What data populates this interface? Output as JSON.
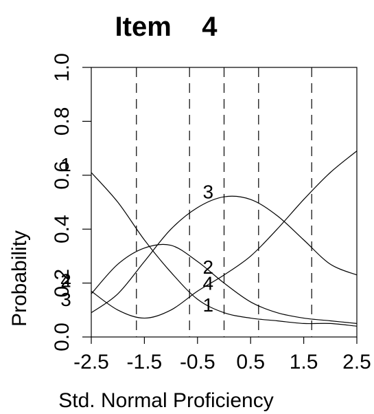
{
  "chart_data": {
    "type": "line",
    "title": "Item    4",
    "xlabel": "Std. Normal Proficiency",
    "ylabel": "Probability",
    "xlim": [
      -2.5,
      2.5
    ],
    "ylim": [
      0.0,
      1.0
    ],
    "x_ticks": [
      -2.5,
      -1.5,
      -0.5,
      0.5,
      1.5,
      2.5
    ],
    "x_tick_labels": [
      "-2.5",
      "-1.5",
      "-0.5",
      "0.5",
      "1.5",
      "2.5"
    ],
    "y_ticks": [
      0.0,
      0.2,
      0.4,
      0.6,
      0.8,
      1.0
    ],
    "y_tick_labels": [
      "0.0",
      "0.2",
      "0.4",
      "0.6",
      "0.8",
      "1.0"
    ],
    "vertical_dashed_lines": [
      -1.65,
      -0.65,
      0.0,
      0.65,
      1.65
    ],
    "grid": false,
    "series": [
      {
        "name": "1",
        "x": [
          -2.5,
          -2.0,
          -1.5,
          -1.0,
          -0.5,
          0.0,
          0.5,
          1.0,
          1.5,
          2.0,
          2.5
        ],
        "values": [
          0.61,
          0.5,
          0.36,
          0.24,
          0.14,
          0.09,
          0.07,
          0.06,
          0.05,
          0.05,
          0.04
        ],
        "label_x": -0.3,
        "label_y": 0.12
      },
      {
        "name": "2",
        "x": [
          -2.5,
          -2.0,
          -1.5,
          -1.0,
          -0.5,
          0.0,
          0.5,
          1.0,
          1.5,
          2.0,
          2.5
        ],
        "values": [
          0.16,
          0.27,
          0.33,
          0.34,
          0.28,
          0.2,
          0.13,
          0.09,
          0.07,
          0.06,
          0.05
        ],
        "label_x": -0.3,
        "label_y": 0.26
      },
      {
        "name": "3",
        "x": [
          -2.5,
          -2.0,
          -1.5,
          -1.0,
          -0.5,
          0.0,
          0.5,
          1.0,
          1.5,
          2.0,
          2.5
        ],
        "values": [
          0.09,
          0.16,
          0.28,
          0.4,
          0.48,
          0.52,
          0.51,
          0.45,
          0.36,
          0.27,
          0.23
        ],
        "label_x": -0.3,
        "label_y": 0.54
      },
      {
        "name": "4",
        "x": [
          -2.5,
          -2.0,
          -1.5,
          -1.0,
          -0.5,
          0.0,
          0.5,
          1.0,
          1.5,
          2.0,
          2.5
        ],
        "values": [
          0.17,
          0.1,
          0.07,
          0.1,
          0.17,
          0.23,
          0.3,
          0.4,
          0.51,
          0.61,
          0.69
        ],
        "label_x": -0.3,
        "label_y": 0.2
      }
    ],
    "edge_labels": [
      {
        "text": "1",
        "y": 0.64
      },
      {
        "text": "2",
        "y": 0.21
      },
      {
        "text": "3",
        "y": 0.14
      },
      {
        "text": "4",
        "y": 0.21
      }
    ]
  }
}
